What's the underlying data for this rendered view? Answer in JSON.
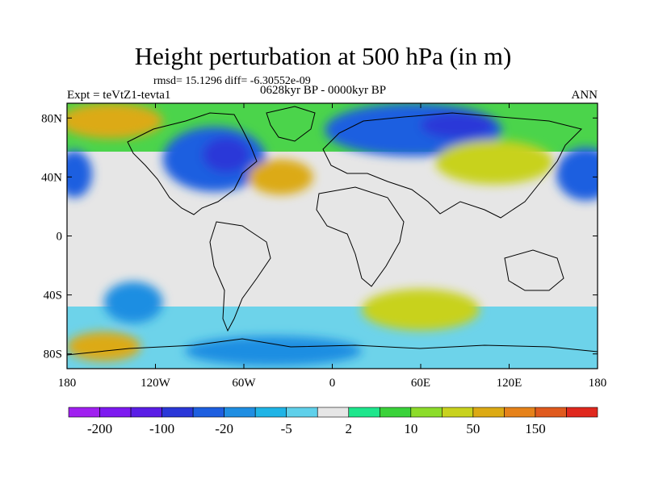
{
  "title": "Height perturbation at 500 hPa (in m)",
  "stats_text": "rmsd= 15.1296 diff= -6.30552e-09",
  "experiment_label": "Expt = teVtZ1-tevta1",
  "period_label": "0628kyr BP - 0000kyr BP",
  "season_label": "ANN",
  "map": {
    "projection": "cylindrical equidistant",
    "lon_range": [
      -180,
      180
    ],
    "lat_range": [
      -90,
      90
    ],
    "y_ticks": [
      {
        "label": "80N",
        "lat": 80
      },
      {
        "label": "40N",
        "lat": 40
      },
      {
        "label": "0",
        "lat": 0
      },
      {
        "label": "40S",
        "lat": -40
      },
      {
        "label": "80S",
        "lat": -80
      }
    ],
    "x_ticks": [
      {
        "label": "180",
        "lon": -180
      },
      {
        "label": "120W",
        "lon": -120
      },
      {
        "label": "60W",
        "lon": -60
      },
      {
        "label": "0",
        "lon": 0
      },
      {
        "label": "60E",
        "lon": 60
      },
      {
        "label": "120E",
        "lon": 120
      },
      {
        "label": "180",
        "lon": 180
      }
    ]
  },
  "colorbar": {
    "colors": [
      "#a020f0",
      "#7d1af0",
      "#5a1ee6",
      "#2a37d8",
      "#1e5fe0",
      "#1f8ee2",
      "#1fb4e6",
      "#5fd0ea",
      "#e6e6e6",
      "#1ee68c",
      "#3ad23a",
      "#8cdc2a",
      "#c8d21e",
      "#dcaa14",
      "#e6821a",
      "#e05a1e",
      "#e0281e"
    ],
    "labels": [
      {
        "text": "-200",
        "index": 1
      },
      {
        "text": "-100",
        "index": 3
      },
      {
        "text": "-20",
        "index": 5
      },
      {
        "text": "-5",
        "index": 7
      },
      {
        "text": "2",
        "index": 9
      },
      {
        "text": "10",
        "index": 11
      },
      {
        "text": "50",
        "index": 13
      },
      {
        "text": "150",
        "index": 15
      }
    ]
  },
  "field_blobs": [
    {
      "name": "n-pacific-low",
      "lon": 172,
      "lat": 42,
      "rx": 20,
      "ry": 18,
      "color_index": 4
    },
    {
      "name": "n-pacific-low-w",
      "lon": -175,
      "lat": 42,
      "rx": 12,
      "ry": 16,
      "color_index": 4
    },
    {
      "name": "n-america-low",
      "lon": -80,
      "lat": 52,
      "rx": 35,
      "ry": 22,
      "color_index": 4
    },
    {
      "name": "n-america-low-core",
      "lon": -72,
      "lat": 55,
      "rx": 16,
      "ry": 12,
      "color_index": 3
    },
    {
      "name": "eurasia-low",
      "lon": 55,
      "lat": 72,
      "rx": 60,
      "ry": 18,
      "color_index": 4
    },
    {
      "name": "eurasia-low-core",
      "lon": 85,
      "lat": 75,
      "rx": 25,
      "ry": 9,
      "color_index": 3
    },
    {
      "name": "atlantic-high",
      "lon": -35,
      "lat": 40,
      "rx": 22,
      "ry": 12,
      "color_index": 13
    },
    {
      "name": "greenland-high",
      "lon": -150,
      "lat": 78,
      "rx": 35,
      "ry": 12,
      "color_index": 13
    },
    {
      "name": "asia-high",
      "lon": 110,
      "lat": 50,
      "rx": 40,
      "ry": 15,
      "color_index": 12
    },
    {
      "name": "s-pacific-low",
      "lon": -135,
      "lat": -45,
      "rx": 20,
      "ry": 14,
      "color_index": 5
    },
    {
      "name": "s-ocean-high",
      "lon": 60,
      "lat": -50,
      "rx": 40,
      "ry": 14,
      "color_index": 12
    },
    {
      "name": "antarctic-low",
      "lon": -40,
      "lat": -78,
      "rx": 60,
      "ry": 10,
      "color_index": 5
    },
    {
      "name": "s-pacific-high",
      "lon": -155,
      "lat": -75,
      "rx": 25,
      "ry": 10,
      "color_index": 13
    }
  ]
}
